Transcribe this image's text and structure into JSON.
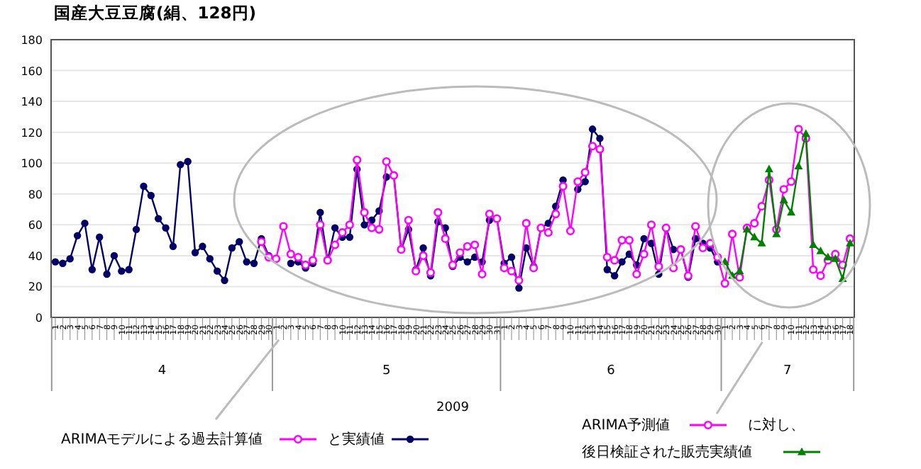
{
  "chart_data": {
    "type": "line",
    "title": "国産大豆豆腐(絹、128円)",
    "categories": [
      "1",
      "2",
      "3",
      "4",
      "5",
      "6",
      "7",
      "8",
      "9",
      "10",
      "11",
      "12",
      "13",
      "14",
      "15",
      "16",
      "17",
      "18",
      "19",
      "20",
      "21",
      "22",
      "23",
      "24",
      "25",
      "26",
      "27",
      "28",
      "29",
      "30",
      "1",
      "2",
      "3",
      "4",
      "5",
      "6",
      "7",
      "8",
      "9",
      "10",
      "11",
      "12",
      "13",
      "14",
      "15",
      "16",
      "17",
      "18",
      "19",
      "20",
      "21",
      "22",
      "23",
      "24",
      "25",
      "26",
      "27",
      "28",
      "29",
      "30",
      "31",
      "1",
      "2",
      "3",
      "4",
      "5",
      "6",
      "7",
      "8",
      "9",
      "10",
      "11",
      "12",
      "13",
      "14",
      "15",
      "16",
      "17",
      "18",
      "19",
      "20",
      "21",
      "22",
      "23",
      "24",
      "25",
      "26",
      "27",
      "28",
      "29",
      "30",
      "1",
      "2",
      "3",
      "4",
      "5",
      "6",
      "7",
      "8",
      "9",
      "10",
      "11",
      "12",
      "13",
      "14",
      "15",
      "16",
      "17",
      "18"
    ],
    "series": [
      {
        "name": "と実績値",
        "color": "#000066",
        "marker": "circle",
        "values": [
          36,
          35,
          38,
          53,
          61,
          31,
          52,
          28,
          40,
          30,
          31,
          57,
          85,
          79,
          64,
          58,
          46,
          99,
          101,
          42,
          46,
          38,
          30,
          24,
          45,
          49,
          36,
          35,
          51,
          40,
          null,
          null,
          35,
          36,
          32,
          35,
          68,
          37,
          58,
          52,
          52,
          96,
          60,
          63,
          69,
          91,
          92,
          44,
          57,
          31,
          45,
          27,
          62,
          58,
          33,
          39,
          36,
          39,
          36,
          63,
          64,
          35,
          39,
          19,
          45,
          33,
          58,
          61,
          72,
          89,
          null,
          83,
          88,
          122,
          116,
          31,
          27,
          36,
          41,
          34,
          51,
          48,
          28,
          58,
          44,
          44,
          26,
          51,
          48,
          45,
          36,
          null,
          null,
          null,
          null,
          null,
          null,
          null,
          null,
          null,
          null,
          null,
          null,
          null,
          null,
          null,
          null,
          null,
          null
        ]
      },
      {
        "name": "ARIMAモデルによる過去計算値",
        "color": "#ff00ff",
        "marker": "open-circle",
        "values": [
          null,
          null,
          null,
          null,
          null,
          null,
          null,
          null,
          null,
          null,
          null,
          null,
          null,
          null,
          null,
          null,
          null,
          null,
          null,
          null,
          null,
          null,
          null,
          null,
          null,
          null,
          null,
          null,
          49,
          39,
          38,
          59,
          41,
          39,
          34,
          37,
          60,
          37,
          47,
          55,
          60,
          102,
          68,
          58,
          57,
          101,
          92,
          44,
          63,
          30,
          40,
          29,
          68,
          51,
          34,
          42,
          46,
          47,
          28,
          67,
          64,
          32,
          30,
          24,
          61,
          32,
          58,
          55,
          67,
          85,
          56,
          88,
          94,
          111,
          109,
          39,
          37,
          50,
          50,
          28,
          41,
          60,
          33,
          58,
          32,
          44,
          27,
          59,
          45,
          48,
          39,
          22,
          54,
          26,
          58,
          61,
          72,
          89,
          57,
          83,
          88,
          122,
          116,
          31,
          27,
          37,
          41,
          34,
          51
        ]
      },
      {
        "name": "後日検証された販売実績値",
        "color": "#008000",
        "marker": "triangle",
        "values": [
          null,
          null,
          null,
          null,
          null,
          null,
          null,
          null,
          null,
          null,
          null,
          null,
          null,
          null,
          null,
          null,
          null,
          null,
          null,
          null,
          null,
          null,
          null,
          null,
          null,
          null,
          null,
          null,
          null,
          null,
          null,
          null,
          null,
          null,
          null,
          null,
          null,
          null,
          null,
          null,
          null,
          null,
          null,
          null,
          null,
          null,
          null,
          null,
          null,
          null,
          null,
          null,
          null,
          null,
          null,
          null,
          null,
          null,
          null,
          null,
          null,
          null,
          null,
          null,
          null,
          null,
          null,
          null,
          null,
          null,
          null,
          null,
          null,
          null,
          null,
          null,
          null,
          null,
          null,
          null,
          null,
          null,
          null,
          null,
          null,
          null,
          null,
          null,
          null,
          null,
          null,
          36,
          27,
          30,
          57,
          52,
          48,
          96,
          54,
          76,
          68,
          98,
          119,
          47,
          43,
          39,
          38,
          25,
          48
        ]
      }
    ],
    "ylim": [
      0,
      180
    ],
    "yticks": [
      0,
      20,
      40,
      60,
      80,
      100,
      120,
      140,
      160,
      180
    ],
    "grid": "y",
    "legend": "bottom",
    "annotations": [
      "4",
      "5",
      "6",
      "7",
      "2009",
      "ARIMA予測値",
      "に対し、"
    ]
  }
}
